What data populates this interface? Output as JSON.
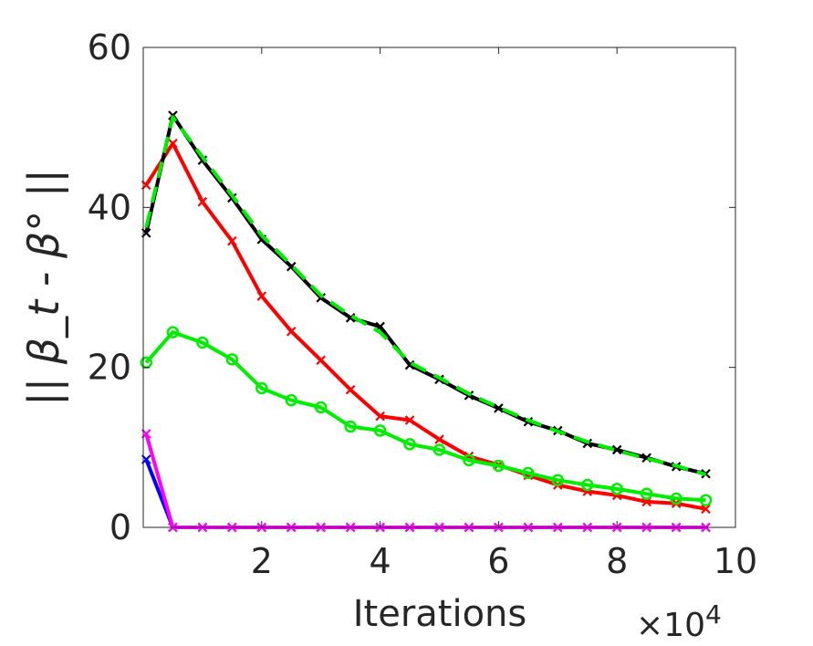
{
  "chart_data": {
    "type": "line",
    "title": "",
    "xlabel": "Iterations",
    "x_multiplier_label": "×10",
    "x_multiplier_exponent": "4",
    "ylabel": "|| β_t - β° ||",
    "xlim": [
      0,
      10
    ],
    "ylim": [
      0,
      60
    ],
    "xticks": [
      2,
      4,
      6,
      8,
      10
    ],
    "yticks": [
      0,
      20,
      40,
      60
    ],
    "xtick_labels": [
      "2",
      "4",
      "6",
      "8",
      "10"
    ],
    "ytick_labels": [
      "0",
      "20",
      "40",
      "60"
    ],
    "grid": false,
    "series": [
      {
        "color": "#0000ff",
        "marker": "x",
        "dash": "",
        "x": [
          0.05,
          0.5,
          1,
          1.5,
          2,
          2.5,
          3,
          3.5,
          4,
          4.5,
          5,
          5.5,
          6,
          6.5,
          7,
          7.5,
          8,
          8.5,
          9,
          9.5
        ],
        "y": [
          8.5,
          0,
          0,
          0,
          0,
          0,
          0,
          0,
          0,
          0,
          0,
          0,
          0,
          0,
          0,
          0,
          0,
          0,
          0,
          0
        ]
      },
      {
        "color": "#ff00ff",
        "marker": "x",
        "dash": "",
        "x": [
          0.05,
          0.5,
          1,
          1.5,
          2,
          2.5,
          3,
          3.5,
          4,
          4.5,
          5,
          5.5,
          6,
          6.5,
          7,
          7.5,
          8,
          8.5,
          9,
          9.5
        ],
        "y": [
          11.7,
          0,
          0,
          0,
          0,
          0,
          0,
          0,
          0,
          0,
          0,
          0,
          0,
          0,
          0,
          0,
          0,
          0,
          0,
          0
        ]
      },
      {
        "color": "#ff0000",
        "marker": "x",
        "dash": "",
        "x": [
          0.05,
          0.5,
          1,
          1.5,
          2,
          2.5,
          3,
          3.5,
          4,
          4.5,
          5,
          5.5,
          6,
          6.5,
          7,
          7.5,
          8,
          8.5,
          9,
          9.5
        ],
        "y": [
          42.8,
          48.0,
          40.7,
          35.8,
          28.9,
          24.5,
          20.9,
          17.2,
          13.9,
          13.4,
          11.0,
          8.9,
          7.8,
          6.5,
          5.3,
          4.5,
          4.0,
          3.2,
          3.0,
          2.3
        ]
      },
      {
        "color": "#00ee00",
        "marker": "o",
        "dash": "",
        "x": [
          0.05,
          0.5,
          1,
          1.5,
          2,
          2.5,
          3,
          3.5,
          4,
          4.5,
          5,
          5.5,
          6,
          6.5,
          7,
          7.5,
          8,
          8.5,
          9,
          9.5
        ],
        "y": [
          20.6,
          24.4,
          23.1,
          21.0,
          17.4,
          15.9,
          15.0,
          12.6,
          12.1,
          10.4,
          9.7,
          8.4,
          7.7,
          6.8,
          5.9,
          5.3,
          4.8,
          4.2,
          3.6,
          3.4
        ]
      },
      {
        "color": "#000000",
        "marker": "x",
        "dash": "",
        "x": [
          0.05,
          0.5,
          1,
          1.5,
          2,
          2.5,
          3,
          3.5,
          4,
          4.5,
          5,
          5.5,
          6,
          6.5,
          7,
          7.5,
          8,
          8.5,
          9,
          9.5
        ],
        "y": [
          36.8,
          51.5,
          45.9,
          41.2,
          36.0,
          32.6,
          28.7,
          26.2,
          25.1,
          20.3,
          18.5,
          16.5,
          14.9,
          13.2,
          12.1,
          10.5,
          9.7,
          8.7,
          7.6,
          6.7
        ]
      },
      {
        "color": "#00ee00",
        "marker": "",
        "dash": "18,10",
        "x": [
          0.05,
          0.5,
          1,
          1.5,
          2,
          2.5,
          3,
          3.5,
          4,
          4.5,
          5,
          5.5,
          6,
          6.5,
          7,
          7.5,
          8,
          8.5,
          9,
          9.5
        ],
        "y": [
          37.5,
          51.3,
          46.3,
          41.5,
          36.5,
          32.8,
          29.0,
          26.5,
          24.4,
          20.6,
          18.7,
          16.7,
          15.0,
          13.4,
          12.0,
          10.7,
          9.6,
          8.6,
          7.7,
          6.6
        ]
      }
    ]
  }
}
